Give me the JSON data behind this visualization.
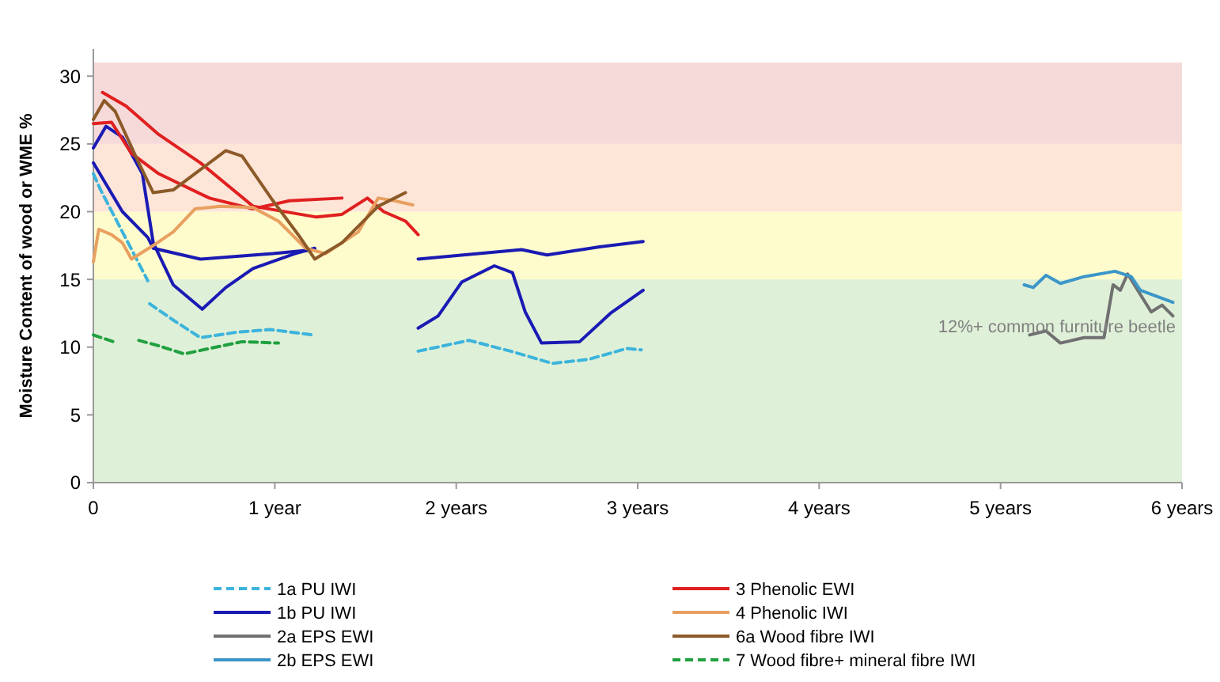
{
  "chart_data": {
    "type": "line",
    "ylabel": "Moisture Content of wood or WME %",
    "xlim": [
      0,
      6
    ],
    "ylim": [
      0,
      32
    ],
    "xticks": [
      0,
      {
        "value": 1,
        "label": "1 year"
      },
      {
        "value": 2,
        "label": "2 years"
      },
      {
        "value": 3,
        "label": "3 years"
      },
      {
        "value": 4,
        "label": "4 years"
      },
      {
        "value": 5,
        "label": "5 years"
      },
      {
        "value": 6,
        "label": "6 years"
      }
    ],
    "yticks": [
      0,
      5,
      10,
      15,
      20,
      25,
      30
    ],
    "grid": false,
    "legend": "bottom",
    "marker": "none",
    "bands": [
      {
        "axis": "y",
        "from": 0,
        "to": 15,
        "color": "#dff0d8"
      },
      {
        "axis": "y",
        "from": 15,
        "to": 20,
        "color": "#fefccc"
      },
      {
        "axis": "y",
        "from": 20,
        "to": 25,
        "color": "#fde5d8"
      },
      {
        "axis": "y",
        "from": 25,
        "to": 31,
        "color": "#f6dada"
      }
    ],
    "annotations": [
      "12%+ common furniture beetle"
    ],
    "series": [
      {
        "name": "1a PU IWI",
        "color": "#3cb4dc",
        "line_style": "dashed",
        "x": [
          0,
          0.04,
          0.3,
          0.305,
          0.31,
          0.44,
          0.59,
          0.79,
          0.97,
          1.21,
          1.5,
          1.79,
          2.07,
          2.3,
          2.53,
          2.73,
          2.94,
          3.02
        ],
        "values": [
          22.8,
          21.6,
          14.9,
          null,
          13.2,
          12.0,
          10.7,
          11.1,
          11.3,
          10.9,
          null,
          9.7,
          10.5,
          9.7,
          8.8,
          9.1,
          9.9,
          9.8
        ]
      },
      {
        "name": "1b PU IWI",
        "color": "#1a1ab4",
        "x": [
          0,
          0.16,
          0.3,
          0.33,
          0.59,
          0.79,
          0.99,
          1.22,
          1.5,
          1.79,
          2.36,
          2.5,
          2.79,
          3.03
        ],
        "values": [
          23.6,
          20.0,
          18.1,
          17.3,
          16.5,
          16.7,
          16.9,
          17.2,
          null,
          16.5,
          17.2,
          16.8,
          17.4,
          17.8
        ]
      },
      {
        "color": "#1a1ab4",
        "x": [
          0,
          0.07,
          0.16,
          0.27,
          0.33,
          0.44,
          0.6,
          0.73,
          0.88,
          1.11,
          1.22,
          1.5,
          1.79,
          1.9,
          2.03,
          2.21,
          2.31,
          2.38,
          2.47,
          2.68,
          2.85,
          3.03
        ],
        "values": [
          24.7,
          26.3,
          25.5,
          22.8,
          17.7,
          14.6,
          12.8,
          14.4,
          15.8,
          16.9,
          17.3,
          null,
          11.4,
          12.3,
          14.8,
          16.0,
          15.5,
          12.6,
          10.3,
          10.4,
          12.5,
          14.2
        ]
      },
      {
        "name": "2a EPS EWI",
        "color": "#707070",
        "x": [
          5.16,
          5.25,
          5.33,
          5.46,
          5.57,
          5.62,
          5.66,
          5.7,
          5.83,
          5.89,
          5.95
        ],
        "values": [
          10.9,
          11.2,
          10.3,
          10.7,
          10.7,
          14.6,
          14.2,
          15.4,
          12.6,
          13.1,
          12.3
        ]
      },
      {
        "name": "2b EPS EWI",
        "color": "#3c96c8",
        "x": [
          5.13,
          5.18,
          5.25,
          5.33,
          5.46,
          5.63,
          5.72,
          5.77,
          5.95
        ],
        "values": [
          14.6,
          14.4,
          15.3,
          14.7,
          15.2,
          15.6,
          15.2,
          14.2,
          13.3
        ]
      },
      {
        "name": "3 Phenolic EWI",
        "color": "#e02020",
        "x": [
          0.05,
          0.18,
          0.36,
          0.59,
          0.88,
          1.23,
          1.37,
          1.51,
          1.6,
          1.72,
          1.79
        ],
        "values": [
          28.8,
          27.8,
          25.7,
          23.6,
          20.4,
          19.6,
          19.8,
          21.0,
          20.0,
          19.3,
          18.3
        ]
      },
      {
        "color": "#e02020",
        "x": [
          0,
          0.1,
          0.21,
          0.36,
          0.64,
          0.88,
          1.08,
          1.37
        ],
        "values": [
          26.5,
          26.6,
          24.3,
          22.8,
          21.0,
          20.2,
          20.8,
          21.0
        ]
      },
      {
        "name": "4 Phenolic IWI",
        "color": "#e8a060",
        "x": [
          0,
          0.03,
          0.1,
          0.16,
          0.21,
          0.33,
          0.44,
          0.56,
          0.7,
          0.88,
          1.02,
          1.17,
          1.28,
          1.46,
          1.57,
          1.66,
          1.76
        ],
        "values": [
          16.3,
          18.7,
          18.3,
          17.7,
          16.5,
          17.5,
          18.5,
          20.2,
          20.4,
          20.3,
          19.3,
          17.3,
          16.9,
          18.5,
          21.0,
          20.8,
          20.5
        ]
      },
      {
        "name": "6a Wood fibre IWI",
        "color": "#8c5a28",
        "x": [
          0,
          0.06,
          0.12,
          0.24,
          0.33,
          0.44,
          0.59,
          0.73,
          0.82,
          0.99,
          1.14,
          1.22,
          1.37,
          1.57,
          1.72
        ],
        "values": [
          26.8,
          28.2,
          27.4,
          23.9,
          21.4,
          21.6,
          23.1,
          24.5,
          24.1,
          20.8,
          18.1,
          16.5,
          17.7,
          20.4,
          21.4
        ]
      },
      {
        "name": "7 Wood fibre+ mineral fibre IWI",
        "color": "#20a040",
        "line_style": "dashed",
        "x": [
          0,
          0.11,
          0.18,
          0.25,
          0.36,
          0.5,
          0.64,
          0.82,
          1.02
        ],
        "values": [
          10.9,
          10.4,
          null,
          10.5,
          10.1,
          9.5,
          9.9,
          10.4,
          10.3
        ]
      }
    ]
  }
}
